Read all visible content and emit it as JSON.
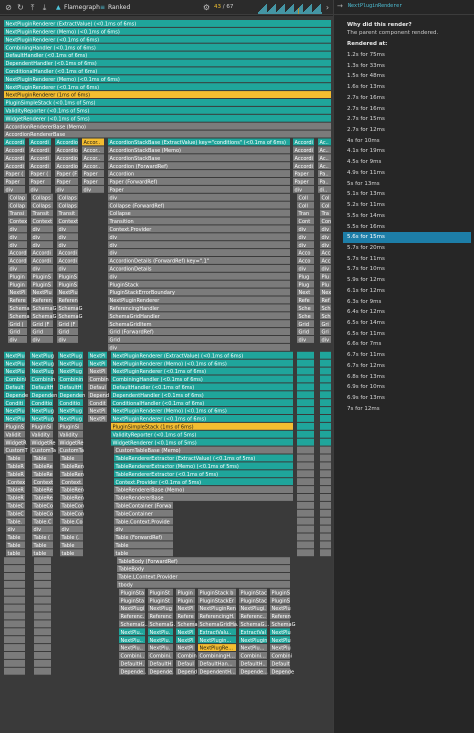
{
  "toolbar": {
    "icons": [
      "circle-slash-icon",
      "reload-icon",
      "upload-icon",
      "download-icon"
    ],
    "tabs": [
      {
        "name": "flamegraph",
        "label": "Flamegraph",
        "icon": "flame-icon",
        "active": true
      },
      {
        "name": "ranked",
        "label": "Ranked",
        "icon": "ranked-icon",
        "active": false
      }
    ],
    "settings_icon": "gear-icon",
    "commit_current": "43",
    "commit_separator": " / ",
    "commit_total": "67",
    "prev_icon": "chevron-left-icon",
    "next_icon": "chevron-right-icon"
  },
  "colors": {
    "teal": "#1fa59b",
    "gold": "#f4bd30",
    "gray": "#7b7b7b",
    "selected": "#1d7ea8",
    "accent": "#4fc3d9"
  },
  "side_panel": {
    "component_name": "NextPluginRenderer",
    "why_title": "Why did this render?",
    "why_text": "The parent component rendered.",
    "rendered_at_title": "Rendered at:",
    "selected_index": 17,
    "renders": [
      "1.2s for 75ms",
      "1.3s for 33ms",
      "1.5s for 48ms",
      "1.6s for 13ms",
      "2.7s for 16ms",
      "2.7s for 16ms",
      "2.7s for 15ms",
      "2.7s for 12ms",
      "4s for 10ms",
      "4.1s for 19ms",
      "4.5s for 9ms",
      "4.9s for 11ms",
      "5s for 13ms",
      "5.1s for 13ms",
      "5.2s for 11ms",
      "5.5s for 14ms",
      "5.5s for 16ms",
      "5.6s for 15ms",
      "5.7s for 20ms",
      "5.7s for 11ms",
      "5.7s for 10ms",
      "5.9s for 12ms",
      "6.1s for 12ms",
      "6.3s for 9ms",
      "6.4s for 12ms",
      "6.5s for 14ms",
      "6.5s for 11ms",
      "6.6s for 7ms",
      "6.7s for 11ms",
      "6.7s for 12ms",
      "6.8s for 13ms",
      "6.9s for 10ms",
      "6.9s for 13ms",
      "7s for 12ms"
    ]
  },
  "flamegraph": {
    "rows": [
      {
        "label": "NextPluginRenderer (ExtractValue) (<0.1ms of 6ms)",
        "c": "teal"
      },
      {
        "label": "NextPluginRenderer (Memo) (<0.1ms of 6ms)",
        "c": "teal"
      },
      {
        "label": "NextPluginRenderer (<0.1ms of 6ms)",
        "c": "teal"
      },
      {
        "label": "CombiningHandler (<0.1ms of 6ms)",
        "c": "teal"
      },
      {
        "label": "DefaultHandler (<0.1ms of 6ms)",
        "c": "teal"
      },
      {
        "label": "DependentHandler (<0.1ms of 6ms)",
        "c": "teal"
      },
      {
        "label": "ConditionalHandler (<0.1ms of 6ms)",
        "c": "teal"
      },
      {
        "label": "NextPluginRenderer (Memo) (<0.1ms of 6ms)",
        "c": "teal"
      },
      {
        "label": "NextPluginRenderer (<0.1ms of 6ms)",
        "c": "teal"
      },
      {
        "label": "NextPluginRenderer (1ms of 6ms)",
        "c": "gold"
      },
      {
        "label": "PluginSimpleStack (<0.1ms of 5ms)",
        "c": "teal"
      },
      {
        "label": "ValidityReporter (<0.1ms of 5ms)",
        "c": "teal"
      },
      {
        "label": "WidgetRenderer (<0.1ms of 5ms)",
        "c": "teal"
      },
      {
        "label": "AccordionRendererBase (Memo)",
        "c": "gray"
      },
      {
        "label": "AccordionRendererBase",
        "c": "gray"
      }
    ],
    "stack_blocks": [
      {
        "col": [
          4,
          26
        ],
        "top": 141,
        "rows": [
          "Accordion...",
          "AccordionStackBase",
          "Accordion...",
          "Accordion...",
          "Paper (Fo...",
          "Paper",
          "div"
        ],
        "c0": "teal"
      },
      {
        "col": [
          29,
          52
        ],
        "top": 141,
        "rows": [
          "Accordion...",
          "AccordionStackBase",
          "Accordion...",
          "Accordion...",
          "Paper (Fo...",
          "Paper",
          "div"
        ],
        "c0": "teal"
      },
      {
        "col": [
          55,
          79
        ],
        "top": 141,
        "rows": [
          "Accordion...",
          "AccordionStackBase",
          "Accordion...",
          "Accordion...",
          "Paper (Fo...",
          "Paper",
          "div"
        ],
        "c0": "teal"
      },
      {
        "col": [
          82,
          105
        ],
        "top": 141,
        "rows": [
          "Accor...",
          "Accor...",
          "Accor...",
          "Accor...",
          "Paper",
          "Paper",
          "div"
        ],
        "c0": "gold"
      },
      {
        "col": [
          108,
          291
        ],
        "top": 141,
        "rows": [
          "AccordionStackBase (ExtractValue) key=\"conditions\" (<0.1ms of 6ms)",
          "AccordionStackBase (Memo)",
          "AccordionStackBase",
          "Accordion (ForwardRef)",
          "Accordion",
          "Paper (ForwardRef)",
          "Paper",
          "div",
          "Collapse (ForwardRef)",
          "Collapse",
          "Transition",
          "Context.Provider",
          "div",
          "div",
          "div",
          "AccordionDetails (ForwardRef) key=\".1\"",
          "AccordionDetails",
          "div",
          "PluginStack",
          "PluginStackErrorBoundary",
          "NextPluginRenderer",
          "ReferencingHandler",
          "SchemaGridHandler",
          "SchemaGridItem",
          "Grid (ForwardRef)",
          "Grid",
          "div"
        ],
        "c0": "teal"
      },
      {
        "col": [
          293,
          315
        ],
        "top": 141,
        "rows": [
          "Accordion...",
          "Accordion...",
          "Accordion...",
          "Accordion...",
          "Paper",
          "Paper",
          "div"
        ],
        "c0": "teal"
      },
      {
        "col": [
          318,
          332
        ],
        "top": 141,
        "rows": [
          "Ac...",
          "Ac...",
          "Ac...",
          "Ac...",
          "Pa...",
          "Pa...",
          "di..."
        ],
        "c0": "teal"
      }
    ],
    "mid_rows": [
      {
        "label": "NextPluginRenderer (ExtractValue) (<0.1ms of 6ms)",
        "c": "teal"
      },
      {
        "label": "NextPluginRenderer (Memo) (<0.1ms of 6ms)",
        "c": "teal"
      },
      {
        "label": "NextPluginRenderer (<0.1ms of 6ms)",
        "c": "teal"
      },
      {
        "label": "CombiningHandler (<0.1ms of 6ms)",
        "c": "teal"
      },
      {
        "label": "DefaultHandler (<0.1ms of 6ms)",
        "c": "teal"
      },
      {
        "label": "DependentHandler (<0.1ms of 6ms)",
        "c": "teal"
      },
      {
        "label": "ConditionalHandler (<0.1ms of 6ms)",
        "c": "teal"
      },
      {
        "label": "NextPluginRenderer (Memo) (<0.1ms of 6ms)",
        "c": "teal"
      },
      {
        "label": "NextPluginRenderer (<0.1ms of 6ms)",
        "c": "teal"
      },
      {
        "label": "PluginSimpleStack (1ms of 6ms)",
        "c": "gold"
      },
      {
        "label": "ValidityReporter (<0.1ms of 5ms)",
        "c": "teal"
      },
      {
        "label": "WidgetRenderer (<0.1ms of 5ms)",
        "c": "teal"
      },
      {
        "label": "CustomTableBase (Memo)",
        "c": "gray"
      },
      {
        "label": "TableRendererExtractor (ExtractValue) (<0.1ms of 5ms)",
        "c": "teal"
      },
      {
        "label": "TableRendererExtractor (Memo) (<0.1ms of 5ms)",
        "c": "teal"
      },
      {
        "label": "TableRendererExtractor (<0.1ms of 5ms)",
        "c": "teal"
      },
      {
        "label": "Context.Provider (<0.1ms of 5ms)",
        "c": "teal"
      },
      {
        "label": "TableRendererBase (Memo)",
        "c": "gray"
      },
      {
        "label": "TableRendererBase",
        "c": "gray"
      },
      {
        "label": "TableContainer (ForwardRef)",
        "c": "gray"
      },
      {
        "label": "TableContainer",
        "c": "gray"
      },
      {
        "label": "Table.Context.Provider",
        "c": "gray"
      },
      {
        "label": "div",
        "c": "gray"
      },
      {
        "label": "Table (ForwardRef)",
        "c": "gray"
      },
      {
        "label": "Table",
        "c": "gray"
      },
      {
        "label": "table",
        "c": "gray"
      }
    ],
    "bottom_rows": [
      {
        "label": "TableBody (ForwardRef)",
        "c": "gray"
      },
      {
        "label": "TableBody",
        "c": "gray"
      },
      {
        "label": "Table.LContext.Provider",
        "c": "gray"
      },
      {
        "label": "tbody",
        "c": "gray"
      }
    ],
    "bottom_cells": [
      [
        "PluginStack",
        "PluginStack",
        "PluginStack",
        "PluginStack ba...",
        "PluginStack",
        "PluginStack"
      ],
      [
        "PluginStac...",
        "PluginStac...",
        "PluginStac...",
        "PluginStackErr...",
        "PluginStac...",
        "PluginStac..."
      ],
      [
        "NextPlugi...",
        "NextPlugi...",
        "NextPlugi...",
        "NextPluginRen...",
        "NextPlugi...",
        "NextPlugi..."
      ],
      [
        "Referenc...",
        "Referenc...",
        "Referenc...",
        "ReferencingH...",
        "Referenc...",
        "Referenc..."
      ],
      [
        "SchemaG...",
        "SchemaG...",
        "SchemaG...",
        "SchemaGridHa...",
        "SchemaG...",
        "SchemaG..."
      ],
      [
        "NextPlu...",
        "NextPlu...",
        "NextPlu...",
        "ExtractValu...",
        "ExtractValu...",
        "NextPlu..."
      ],
      [
        "NextPlu...",
        "NextPlu...",
        "NextPlu...",
        "NextPlugin...",
        "NextPlugin...",
        "NextPlu..."
      ],
      [
        "NextPlu...",
        "NextPlu...",
        "NextPlu...",
        "NextPlugRe...",
        "NextPlu...",
        "NextPlu..."
      ],
      [
        "Combini...",
        "Combini...",
        "Combini...",
        "CombiningH...",
        "Combini...",
        "Combini..."
      ],
      [
        "DefaultH...",
        "DefaultH...",
        "DefaultH...",
        "DefaultHan...",
        "DefaultH...",
        "DefaultH..."
      ],
      [
        "Depende...",
        "Depende...",
        "Depende...",
        "DependentH...",
        "Depende...",
        "Depende..."
      ]
    ]
  }
}
